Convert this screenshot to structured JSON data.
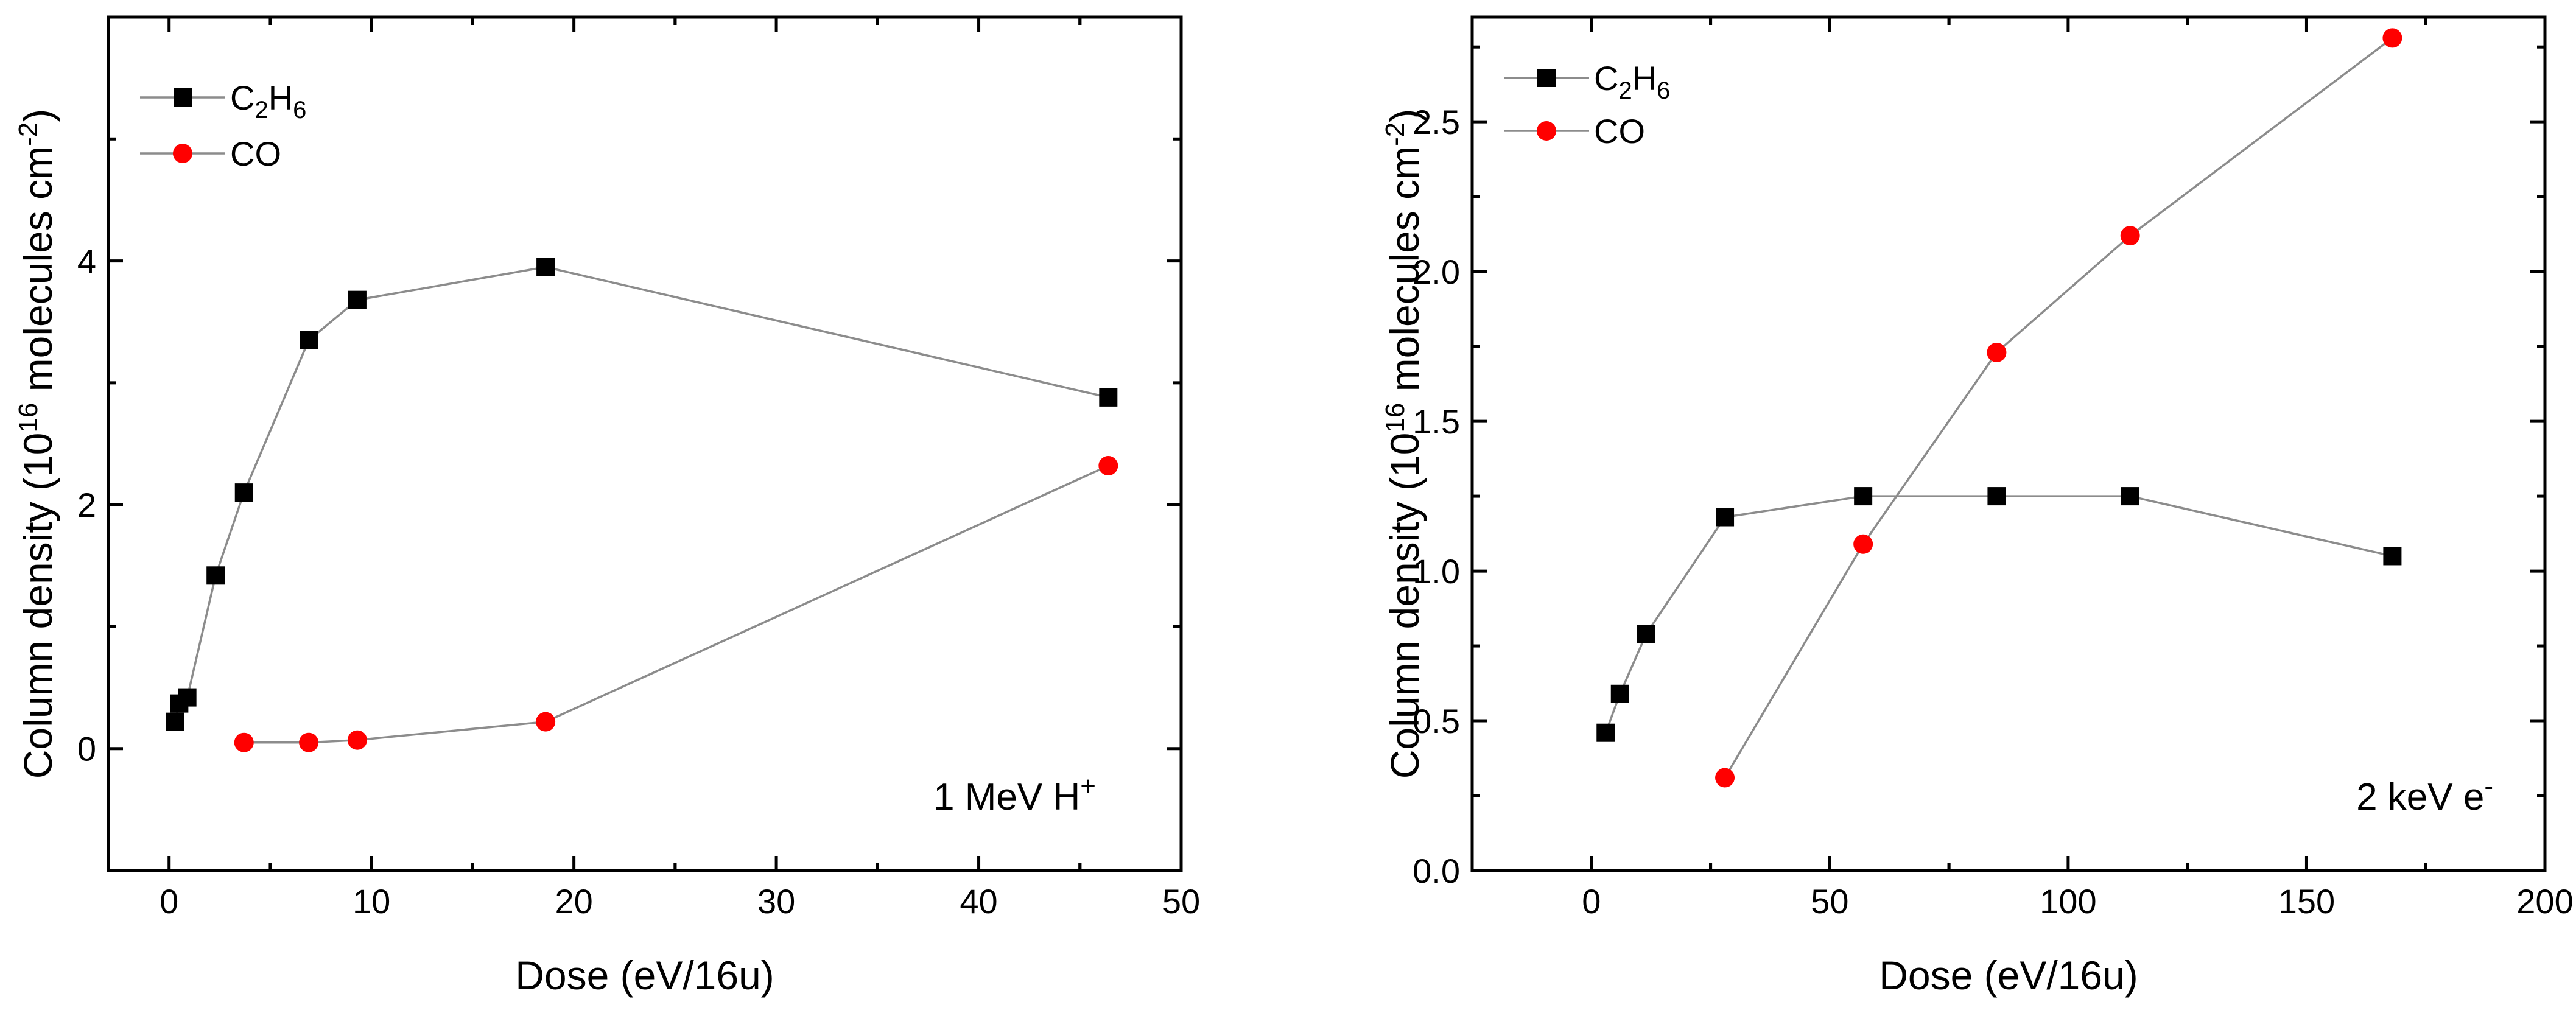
{
  "chart_data": [
    {
      "type": "line",
      "xlabel": "Dose (eV/16u)",
      "ylabel": "Column density (10^16 molecules cm^-2)",
      "ylabel_parts": {
        "pre": "Column density (10",
        "exp": "16",
        "mid": " molecules cm",
        "exp2": "-2",
        "post": ")"
      },
      "annotation": {
        "base": "1 MeV H",
        "sup": "+"
      },
      "xlim": [
        -3,
        50
      ],
      "ylim": [
        -1,
        6
      ],
      "xticks": [
        0,
        10,
        20,
        30,
        40,
        50
      ],
      "yticks": [
        0,
        2,
        4
      ],
      "xtick_labels": [
        "0",
        "10",
        "20",
        "30",
        "40",
        "50"
      ],
      "ytick_labels": [
        "0",
        "2",
        "4"
      ],
      "legend_position": "top-left",
      "series": [
        {
          "name": "C2H6",
          "label": {
            "a": "C",
            "s1": "2",
            "b": "H",
            "s2": "6"
          },
          "marker": "square",
          "color": "#000000",
          "x": [
            0.3,
            0.5,
            0.9,
            2.3,
            3.7,
            6.9,
            9.3,
            18.6,
            46.4
          ],
          "y": [
            0.22,
            0.37,
            0.42,
            1.42,
            2.1,
            3.35,
            3.68,
            3.95,
            2.88
          ]
        },
        {
          "name": "CO",
          "label": {
            "a": "CO",
            "s1": "",
            "b": "",
            "s2": ""
          },
          "marker": "circle",
          "color": "#ff0000",
          "x": [
            3.7,
            6.9,
            9.3,
            18.6,
            46.4
          ],
          "y": [
            0.05,
            0.05,
            0.07,
            0.22,
            2.32
          ]
        }
      ]
    },
    {
      "type": "line",
      "xlabel": "Dose (eV/16u)",
      "ylabel": "Column density (10^16 molecules cm^-2)",
      "ylabel_parts": {
        "pre": "Column density (10",
        "exp": "16",
        "mid": " molecules cm",
        "exp2": "-2",
        "post": ")"
      },
      "annotation": {
        "base": "2 keV e",
        "sup": "-"
      },
      "xlim": [
        -25,
        200
      ],
      "ylim": [
        0,
        2.85
      ],
      "xticks": [
        0,
        50,
        100,
        150,
        200
      ],
      "yticks": [
        0.0,
        0.5,
        1.0,
        1.5,
        2.0,
        2.5
      ],
      "xtick_labels": [
        "0",
        "50",
        "100",
        "150",
        "200"
      ],
      "ytick_labels": [
        "0.0",
        "0.5",
        "1.0",
        "1.5",
        "2.0",
        "2.5"
      ],
      "legend_position": "top-left",
      "series": [
        {
          "name": "C2H6",
          "label": {
            "a": "C",
            "s1": "2",
            "b": "H",
            "s2": "6"
          },
          "marker": "square",
          "color": "#000000",
          "x": [
            3,
            6,
            11.5,
            28,
            57,
            85,
            113,
            168
          ],
          "y": [
            0.46,
            0.59,
            0.79,
            1.18,
            1.25,
            1.25,
            1.25,
            1.05
          ]
        },
        {
          "name": "CO",
          "label": {
            "a": "CO",
            "s1": "",
            "b": "",
            "s2": ""
          },
          "marker": "circle",
          "color": "#ff0000",
          "x": [
            28,
            57,
            85,
            113,
            168
          ],
          "y": [
            0.31,
            1.09,
            1.73,
            2.12,
            2.78
          ]
        }
      ]
    }
  ]
}
